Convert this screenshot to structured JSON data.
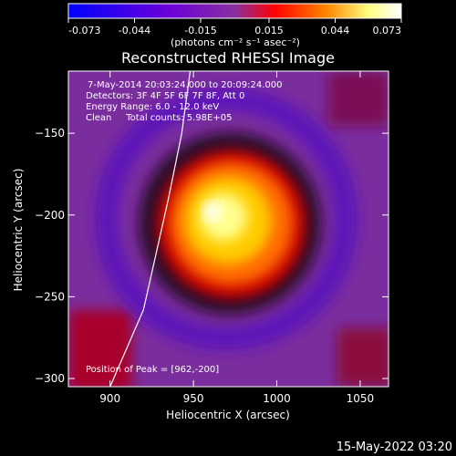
{
  "chart_data": {
    "type": "heatmap",
    "title": "Reconstructed RHESSI Image",
    "xlabel": "Heliocentric X (arcsec)",
    "ylabel": "Heliocentric Y (arcsec)",
    "xlim": [
      875,
      1067
    ],
    "ylim": [
      -305,
      -112
    ],
    "x_ticks": [
      900,
      950,
      1000,
      1050
    ],
    "y_ticks": [
      -150,
      -200,
      -250,
      -300
    ],
    "colorbar": {
      "range": [
        -0.073,
        0.073
      ],
      "tick_labels": [
        "-0.073",
        "-0.044",
        "-0.015",
        "0.015",
        "0.044",
        "0.073"
      ],
      "units_label": "(photons cm⁻² s⁻¹ asec⁻²)",
      "colormap": [
        "#0000ff",
        "#6a00d8",
        "#8a2fa0",
        "#ff0000",
        "#ff8a00",
        "#ffff80",
        "#ffffff"
      ]
    },
    "annotations": [
      "7-May-2014 20:03:24.000 to 20:09:24.000",
      "Detectors: 3F 4F 5F 6F 7F 8F, Att 0",
      "Energy Range: 6.0 - 12.0 keV",
      "Clean     Total counts: 5.98E+05",
      "Position of Peak = [962,-200]"
    ],
    "peak": {
      "x": 962,
      "y": -200
    },
    "limb_curve": [
      [
        900,
        -305
      ],
      [
        920,
        -258
      ],
      [
        935,
        -190
      ],
      [
        943,
        -150
      ],
      [
        948,
        -112
      ]
    ],
    "footer": "15-May-2022 03:20"
  }
}
